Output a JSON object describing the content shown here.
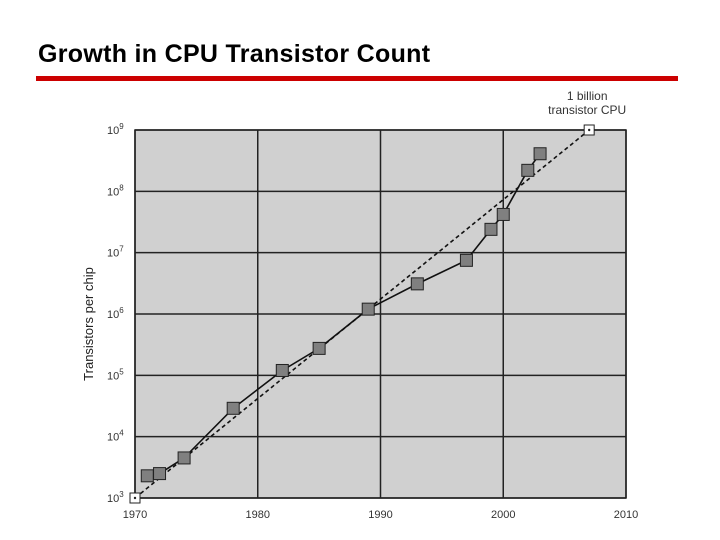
{
  "slide": {
    "title": "Growth in CPU Transistor Count",
    "accent_color": "#cc0000"
  },
  "chart_data": {
    "type": "scatter",
    "title": "Growth in CPU Transistor Count",
    "xlabel": "",
    "ylabel": "Transistors per chip",
    "xlim": [
      1970,
      2010
    ],
    "ylim_log10": [
      3,
      9
    ],
    "y_scale": "log",
    "grid": true,
    "x_ticks": [
      {
        "value": 1970,
        "label": "1970"
      },
      {
        "value": 1980,
        "label": "1980"
      },
      {
        "value": 1990,
        "label": "1990"
      },
      {
        "value": 2000,
        "label": "2000"
      },
      {
        "value": 2010,
        "label": "2010"
      }
    ],
    "y_ticks": [
      {
        "exp": 3,
        "base": "10",
        "sup": "3"
      },
      {
        "exp": 4,
        "base": "10",
        "sup": "4"
      },
      {
        "exp": 5,
        "base": "10",
        "sup": "5"
      },
      {
        "exp": 6,
        "base": "10",
        "sup": "6"
      },
      {
        "exp": 7,
        "base": "10",
        "sup": "7"
      },
      {
        "exp": 8,
        "base": "10",
        "sup": "8"
      },
      {
        "exp": 9,
        "base": "10",
        "sup": "9"
      }
    ],
    "series": [
      {
        "marker": "square",
        "color": "#808080",
        "points": [
          {
            "x": 1971,
            "y": 2300
          },
          {
            "x": 1972,
            "y": 2500
          },
          {
            "x": 1974,
            "y": 4500
          },
          {
            "x": 1978,
            "y": 29000
          },
          {
            "x": 1982,
            "y": 120000
          },
          {
            "x": 1985,
            "y": 275000
          },
          {
            "x": 1989,
            "y": 1200000
          },
          {
            "x": 1993,
            "y": 3100000
          },
          {
            "x": 1997,
            "y": 7500000
          },
          {
            "x": 1999,
            "y": 24000000
          },
          {
            "x": 2000,
            "y": 42000000
          },
          {
            "x": 2002,
            "y": 220000000
          },
          {
            "x": 2003,
            "y": 410000000
          }
        ]
      },
      {
        "marker": "square-open",
        "line_style": "dashed",
        "color": "#ffffff",
        "points": [
          {
            "x": 1970,
            "y": 1000
          },
          {
            "x": 2007,
            "y": 1000000000
          }
        ]
      }
    ],
    "annotations": [
      {
        "lines": [
          "1 billion",
          "transistor CPU"
        ],
        "x": 2007,
        "y": 1000000000
      }
    ],
    "colors": {
      "plot_background": "#d0d0d0",
      "grid": "#222222",
      "line": "#111111"
    }
  }
}
